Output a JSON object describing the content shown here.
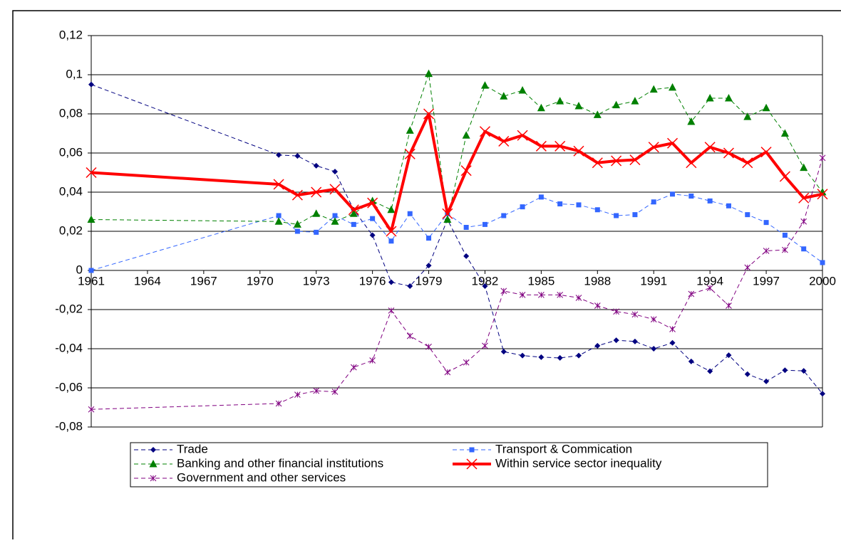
{
  "chart_data": {
    "type": "line",
    "x": [
      1961,
      1971,
      1972,
      1973,
      1974,
      1975,
      1976,
      1977,
      1978,
      1979,
      1980,
      1981,
      1982,
      1983,
      1984,
      1985,
      1986,
      1987,
      1988,
      1989,
      1990,
      1991,
      1992,
      1993,
      1994,
      1995,
      1996,
      1997,
      1998,
      1999,
      2000
    ],
    "xlim": [
      1961,
      2000
    ],
    "xticks": [
      1961,
      1964,
      1967,
      1970,
      1973,
      1976,
      1979,
      1982,
      1985,
      1988,
      1991,
      1994,
      1997,
      2000
    ],
    "ylim": [
      -0.08,
      0.12
    ],
    "yticks": [
      {
        "value": -0.08,
        "label": "-0,08"
      },
      {
        "value": -0.06,
        "label": "-0,06"
      },
      {
        "value": -0.04,
        "label": "-0,04"
      },
      {
        "value": -0.02,
        "label": "-0,02"
      },
      0,
      {
        "value": 0.02,
        "label": "0,02"
      },
      {
        "value": 0.04,
        "label": "0,04"
      },
      {
        "value": 0.06,
        "label": "0,06"
      },
      {
        "value": 0.08,
        "label": "0,08"
      },
      {
        "value": 0.1,
        "label": "0,1"
      },
      {
        "value": 0.12,
        "label": "0,12"
      }
    ],
    "grid": true,
    "legend": "bottom",
    "series": [
      {
        "name": "Trade",
        "color": "#000080",
        "marker": "diamond",
        "dashed": true,
        "width": 1,
        "values": [
          0.095,
          0.059,
          0.0585,
          0.0535,
          0.0505,
          0.031,
          0.018,
          -0.006,
          -0.008,
          0.0025,
          0.026,
          0.0073,
          -0.008,
          -0.0415,
          -0.0435,
          -0.0443,
          -0.0447,
          -0.0435,
          -0.0385,
          -0.0357,
          -0.0363,
          -0.04,
          -0.037,
          -0.0465,
          -0.0515,
          -0.0433,
          -0.053,
          -0.0567,
          -0.051,
          -0.0513,
          -0.063
        ]
      },
      {
        "name": "Transport & Commication",
        "color": "#3366ff",
        "marker": "square",
        "dashed": true,
        "width": 1,
        "values": [
          0.0,
          0.028,
          0.02,
          0.0195,
          0.028,
          0.0235,
          0.0265,
          0.015,
          0.029,
          0.0165,
          0.029,
          0.022,
          0.0235,
          0.028,
          0.0325,
          0.0375,
          0.034,
          0.0335,
          0.031,
          0.028,
          0.0285,
          0.035,
          0.039,
          0.038,
          0.0355,
          0.033,
          0.0285,
          0.0245,
          0.018,
          0.011,
          0.004
        ]
      },
      {
        "name": "Banking and other financial institutions",
        "color": "#008000",
        "marker": "triangle",
        "dashed": true,
        "width": 1,
        "values": [
          0.026,
          0.025,
          0.0235,
          0.029,
          0.025,
          0.029,
          0.0355,
          0.031,
          0.0715,
          0.1005,
          0.026,
          0.069,
          0.0945,
          0.089,
          0.092,
          0.083,
          0.0865,
          0.084,
          0.0795,
          0.0845,
          0.0865,
          0.0925,
          0.0935,
          0.076,
          0.088,
          0.088,
          0.0785,
          0.083,
          0.07,
          0.0525,
          0.04
        ]
      },
      {
        "name": "Within service sector inequality",
        "color": "#ff0000",
        "marker": "x",
        "dashed": false,
        "width": 4,
        "values": [
          0.05,
          0.044,
          0.0385,
          0.04,
          0.0415,
          0.031,
          0.0345,
          0.02,
          0.0595,
          0.08,
          0.029,
          0.051,
          0.071,
          0.066,
          0.069,
          0.0635,
          0.0635,
          0.061,
          0.055,
          0.056,
          0.0565,
          0.063,
          0.065,
          0.055,
          0.063,
          0.06,
          0.055,
          0.0605,
          0.048,
          0.037,
          0.039
        ]
      },
      {
        "name": "Government and other services",
        "color": "#800080",
        "marker": "star",
        "dashed": true,
        "width": 1,
        "values": [
          -0.071,
          -0.068,
          -0.0635,
          -0.0615,
          -0.062,
          -0.0495,
          -0.046,
          -0.0205,
          -0.0335,
          -0.039,
          -0.052,
          -0.047,
          -0.0385,
          -0.0105,
          -0.0125,
          -0.0125,
          -0.0125,
          -0.014,
          -0.018,
          -0.021,
          -0.0225,
          -0.025,
          -0.03,
          -0.012,
          -0.009,
          -0.018,
          0.0015,
          0.01,
          0.0105,
          0.025,
          0.0575
        ]
      }
    ]
  }
}
